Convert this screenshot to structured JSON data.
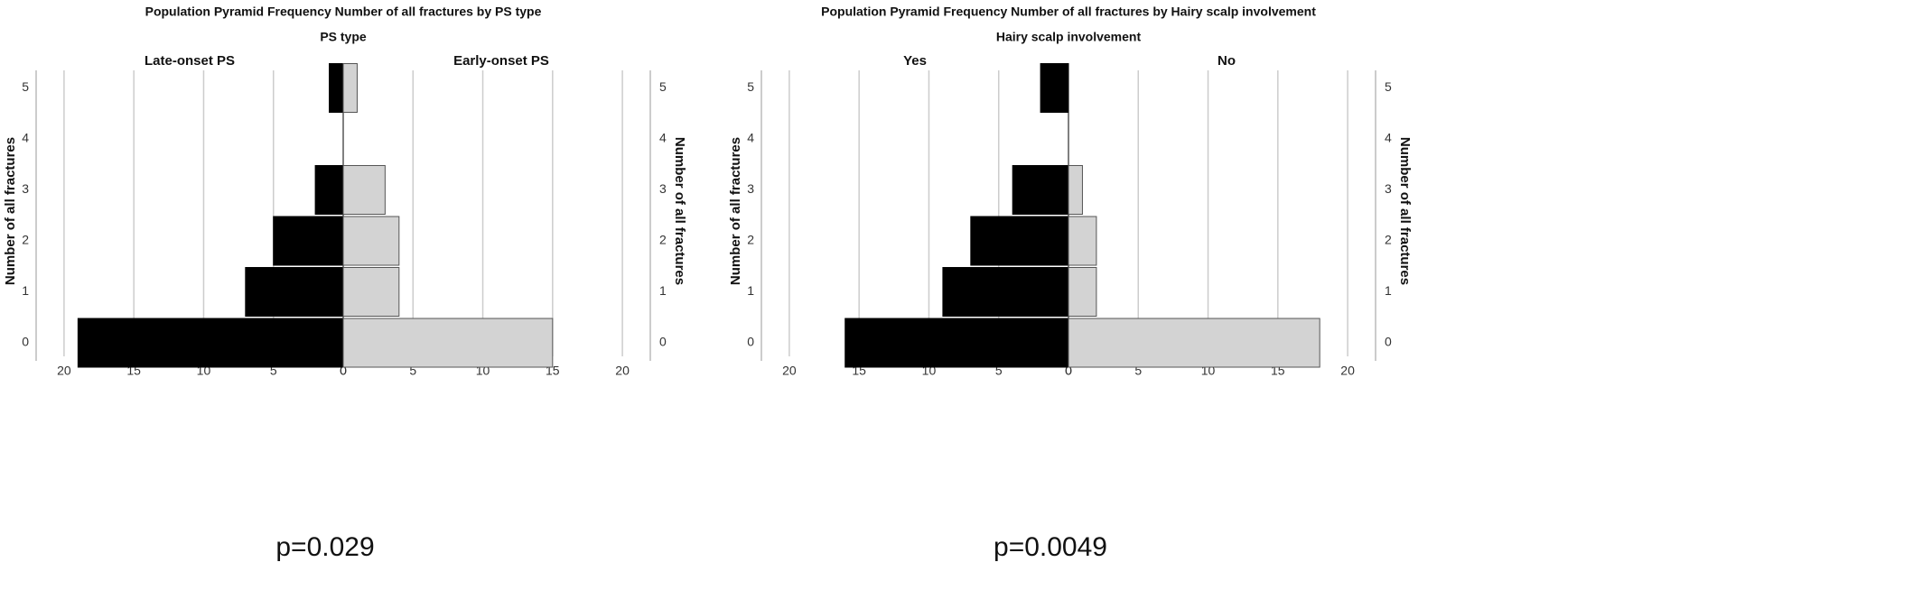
{
  "chart_data": [
    {
      "type": "pyramid",
      "title": "Population Pyramid Frequency Number of all fractures  by PS type",
      "subtitle": "PS type",
      "ylabel": "Number of all fractures",
      "categories": [
        "0",
        "1",
        "2",
        "3",
        "4",
        "5"
      ],
      "series": [
        {
          "name": "Late-onset PS",
          "color": "#000000",
          "values": [
            19,
            7,
            5,
            2,
            0,
            1
          ]
        },
        {
          "name": "Early-onset PS",
          "color": "#d3d3d3",
          "values": [
            15,
            4,
            4,
            3,
            0,
            1
          ]
        }
      ],
      "xlim": [
        0,
        22
      ],
      "xticks": [
        0,
        5,
        10,
        15,
        20
      ],
      "grid": true,
      "annotation": "p=0.029"
    },
    {
      "type": "pyramid",
      "title": "Population Pyramid Frequency Number of all fractures  by Hairy scalp involvement",
      "subtitle": "Hairy scalp involvement",
      "ylabel": "Number of all fractures",
      "categories": [
        "0",
        "1",
        "2",
        "3",
        "4",
        "5"
      ],
      "series": [
        {
          "name": "Yes",
          "color": "#000000",
          "values": [
            16,
            9,
            7,
            4,
            0,
            2
          ]
        },
        {
          "name": "No",
          "color": "#d3d3d3",
          "values": [
            18,
            2,
            2,
            1,
            0,
            0
          ]
        }
      ],
      "xlim": [
        0,
        22
      ],
      "xticks": [
        0,
        5,
        10,
        15,
        20
      ],
      "grid": true,
      "annotation": "p=0.0049"
    }
  ]
}
